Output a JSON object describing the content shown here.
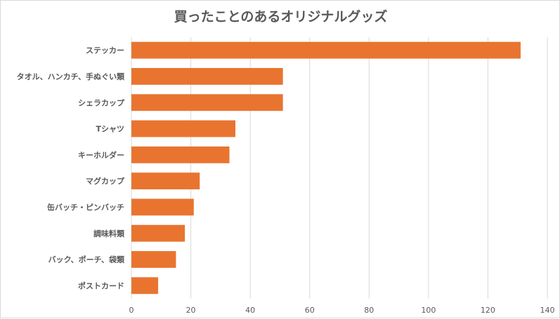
{
  "chart_data": {
    "type": "bar",
    "orientation": "horizontal",
    "title": "買ったことのあるオリジナルグッズ",
    "xlabel": "",
    "ylabel": "",
    "categories": [
      "ステッカー",
      "タオル、ハンカチ、手ぬぐい類",
      "シェラカップ",
      "Tシャツ",
      "キーホルダー",
      "マグカップ",
      "缶バッチ・ピンバッチ",
      "調味料類",
      "バック、ポーチ、袋類",
      "ポストカード"
    ],
    "values": [
      131,
      51,
      51,
      35,
      33,
      23,
      21,
      18,
      15,
      9
    ],
    "xlim": [
      0,
      140
    ],
    "xticks": [
      0,
      20,
      40,
      60,
      80,
      100,
      120,
      140
    ],
    "grid": "vertical",
    "legend": "none",
    "bar_color": "#E97430",
    "grid_color": "#d9d9d9",
    "text_color": "#595959"
  }
}
